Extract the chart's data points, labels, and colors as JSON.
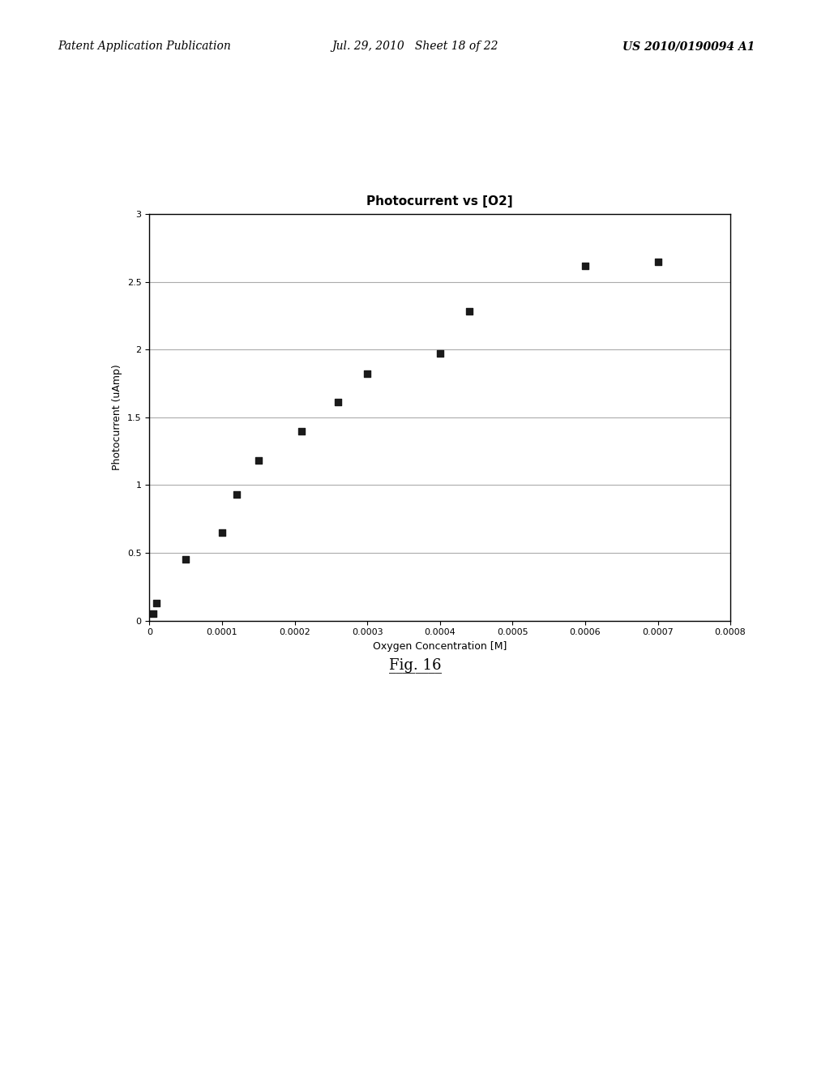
{
  "title": "Photocurrent vs [O2]",
  "xlabel": "Oxygen Concentration [M]",
  "ylabel": "Photocurrent (uAmp)",
  "xlim": [
    0,
    0.0008
  ],
  "ylim": [
    0,
    3
  ],
  "xticks": [
    0,
    0.0001,
    0.0002,
    0.0003,
    0.0004,
    0.0005,
    0.0006,
    0.0007,
    0.0008
  ],
  "yticks": [
    0,
    0.5,
    1,
    1.5,
    2,
    2.5,
    3
  ],
  "scatter_x": [
    5e-06,
    1e-05,
    5e-05,
    0.0001,
    0.00012,
    0.00015,
    0.00021,
    0.00026,
    0.0003,
    0.0004,
    0.00044,
    0.0006,
    0.0007
  ],
  "scatter_y": [
    0.05,
    0.13,
    0.45,
    0.65,
    0.93,
    1.18,
    1.4,
    1.61,
    1.82,
    1.97,
    2.28,
    2.62,
    2.65
  ],
  "header_left": "Patent Application Publication",
  "header_center": "Jul. 29, 2010   Sheet 18 of 22",
  "header_right": "US 2010/0190094 A1",
  "figure_label": "Fig. 16",
  "background_color": "#ffffff",
  "marker_color": "#1a1a1a",
  "marker_size": 7,
  "title_fontsize": 11,
  "axis_label_fontsize": 9,
  "tick_fontsize": 8,
  "header_fontsize": 10,
  "fig_label_fontsize": 13
}
